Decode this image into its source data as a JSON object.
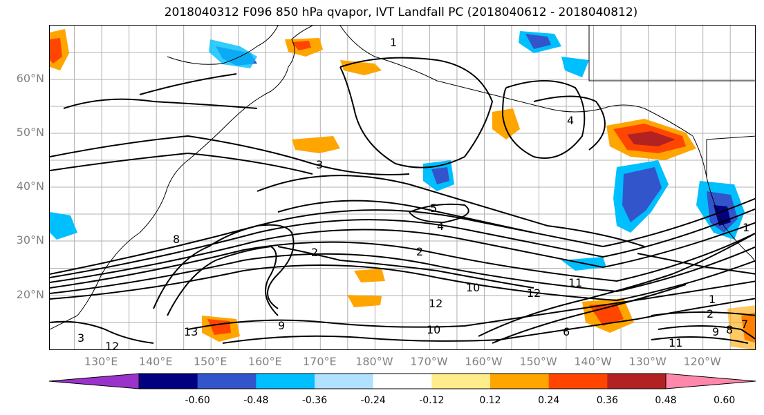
{
  "title": "2018040312 F096 850 hPa qvapor, IVT Landfall PC (2018040612 - 2018040812)",
  "lat_labels": [
    {
      "lat": 60,
      "label": "60°N"
    },
    {
      "lat": 50,
      "label": "50°N"
    },
    {
      "lat": 40,
      "label": "40°N"
    },
    {
      "lat": 30,
      "label": "30°N"
    },
    {
      "lat": 20,
      "label": "20°N"
    }
  ],
  "lon_labels": [
    {
      "lon": 130,
      "label": "130°E"
    },
    {
      "lon": 140,
      "label": "140°E"
    },
    {
      "lon": 150,
      "label": "150°E"
    },
    {
      "lon": 160,
      "label": "160°E"
    },
    {
      "lon": 170,
      "label": "170°E"
    },
    {
      "lon": 180,
      "label": "180°W"
    },
    {
      "lon": 190,
      "label": "170°W"
    },
    {
      "lon": 200,
      "label": "160°W"
    },
    {
      "lon": 210,
      "label": "150°W"
    },
    {
      "lon": 220,
      "label": "140°W"
    },
    {
      "lon": 230,
      "label": "130°W"
    },
    {
      "lon": 240,
      "label": "120°W"
    }
  ],
  "colorbar": {
    "colors": [
      "#9933cc",
      "#000080",
      "#3355cc",
      "#00bfff",
      "#b0e2ff",
      "#ffffff",
      "#ffec8b",
      "#ffa500",
      "#ff4500",
      "#b22222",
      "#ff88aa"
    ],
    "tick_values": [
      "-0.60",
      "-0.48",
      "-0.36",
      "-0.24",
      "-0.12",
      "0.12",
      "0.24",
      "0.36",
      "0.48",
      "0.60"
    ]
  },
  "contour_labels": [
    "1",
    "1",
    "4",
    "3",
    "8",
    "5",
    "4",
    "2",
    "2",
    "10",
    "11",
    "12",
    "12",
    "10",
    "13",
    "9",
    "12",
    "3",
    "6",
    "1",
    "2",
    "9",
    "8",
    "7",
    "11"
  ]
}
